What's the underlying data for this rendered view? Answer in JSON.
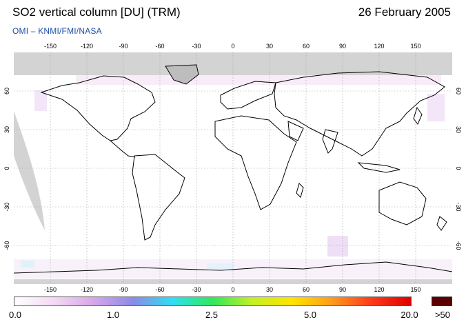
{
  "header": {
    "title": "SO2 vertical column [DU] (TRM)",
    "date": "26 February 2005",
    "subtitle": "OMI  –  KNMI/FMI/NASA"
  },
  "map": {
    "longitude_ticks": [
      "-150",
      "-120",
      "-90",
      "-60",
      "-30",
      "0",
      "30",
      "60",
      "90",
      "120",
      "150"
    ],
    "latitude_ticks": [
      "60",
      "30",
      "0",
      "-30",
      "-60"
    ],
    "colors": {
      "no_data": "#d3d3d3",
      "coastline": "#000000",
      "grid": "#9a9a9a",
      "background": "#ffffff",
      "subtitle": "#1f4ea8"
    }
  },
  "colorbar": {
    "labels": [
      "0.0",
      "1.0",
      "2.5",
      "5.0",
      "20.0",
      ">50"
    ],
    "gradient": [
      "#ffffff",
      "#f3d9f3",
      "#d8a6e8",
      "#8a8ae8",
      "#2ee0f5",
      "#30e85a",
      "#c4f024",
      "#ffe400",
      "#ff9c1c",
      "#ff3a1a",
      "#e00000"
    ],
    "overflow_color": "#5a0000"
  }
}
